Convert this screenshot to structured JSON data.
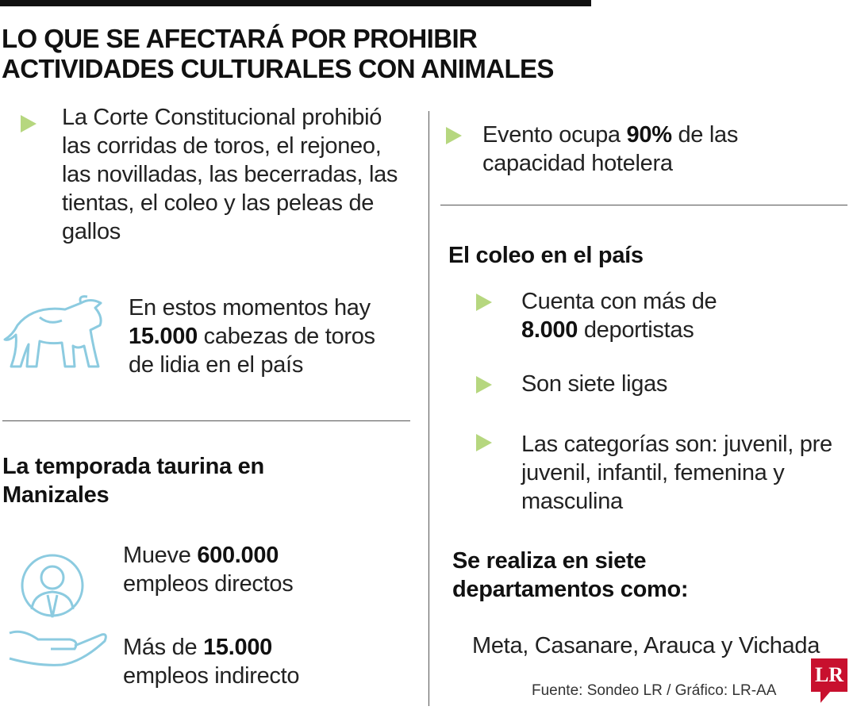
{
  "header": {
    "title_lines": [
      "LO QUE SE AFECTARÁ POR PROHIBIR",
      "ACTIVIDADES CULTURALES CON ANIMALES"
    ]
  },
  "left": {
    "ruling": "La Corte Constitucional prohibió las corridas de toros, el rejoneo, las novilladas, las becerradas, las tientas, el coleo y las peleas de gallos",
    "bulls": {
      "before": "En estos momentos hay",
      "bold": "15.000",
      "after": "cabezas de toros de lidia en el país"
    },
    "season": {
      "title": "La temporada taurina en Manizales",
      "items": [
        {
          "before": "Mueve",
          "bold": "600.000",
          "after": "empleos directos"
        },
        {
          "before": "Más de",
          "bold": "15.000",
          "after": "empleos indirecto"
        }
      ]
    }
  },
  "right": {
    "hotel": {
      "before": "Evento ocupa",
      "bold": "90%",
      "after": "de las capacidad hotelera"
    },
    "coleo": {
      "title": "El coleo en el país",
      "items": [
        {
          "before": "Cuenta con más de",
          "bold": "8.000",
          "after": "deportistas"
        },
        {
          "text": "Son siete ligas"
        },
        {
          "text": "Las categorías son: juvenil, pre juvenil, infantil, femenina y masculina"
        }
      ],
      "departments_title": "Se realiza en siete departamentos como:",
      "departments": "Meta, Casanare, Arauca y Vichada"
    }
  },
  "footer": {
    "source": "Fuente: Sondeo LR / Gráfico: LR-AA",
    "logo": "LR"
  }
}
